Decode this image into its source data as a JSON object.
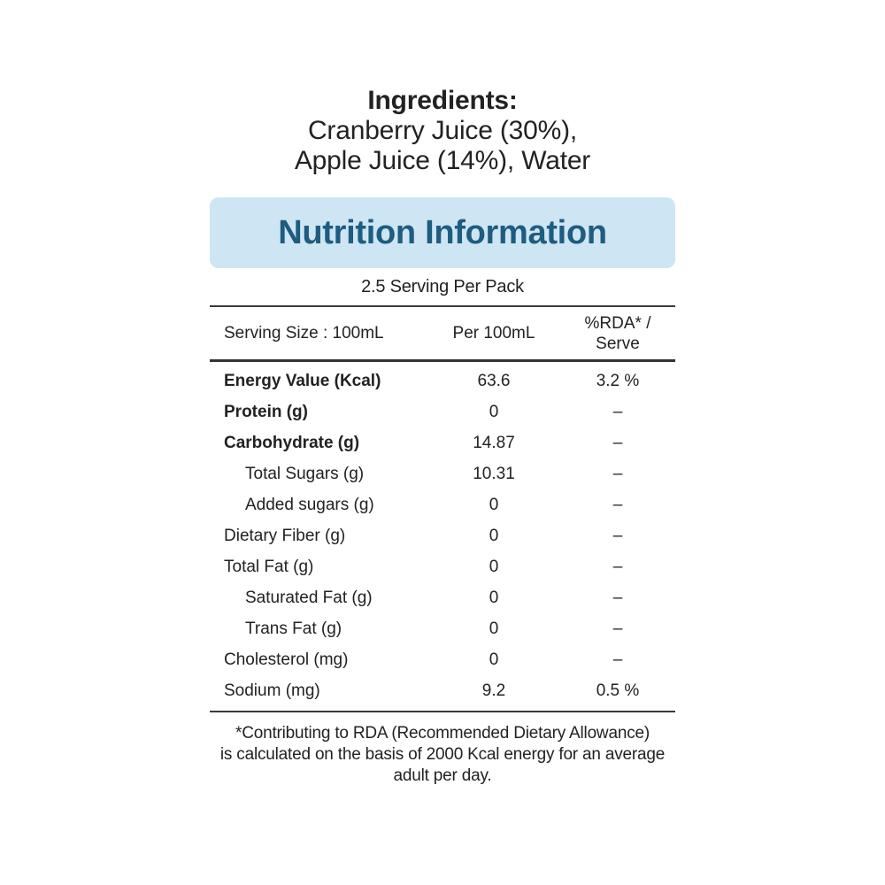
{
  "colors": {
    "banner_background": "#cee5f3",
    "banner_text": "#1e5c80",
    "body_text": "#242122",
    "rule": "#3a3a3a"
  },
  "ingredients": {
    "heading": "Ingredients:",
    "lines": [
      "Cranberry Juice (30%),",
      "Apple Juice (14%), Water"
    ]
  },
  "nutrition": {
    "title": "Nutrition Information",
    "servings_per_pack": "2.5 Serving Per Pack",
    "header": {
      "col1": "Serving Size : 100mL",
      "col2": "Per 100mL",
      "col3_line1": "%RDA* /",
      "col3_line2": "Serve"
    },
    "rows": [
      {
        "label": "Energy Value (Kcal)",
        "per_100ml": "63.6",
        "rda_per_serve": "3.2 %"
      },
      {
        "label": "Protein (g)",
        "per_100ml": "0",
        "rda_per_serve": "–"
      },
      {
        "label": "Carbohydrate (g)",
        "per_100ml": "14.87",
        "rda_per_serve": "–"
      },
      {
        "label": "Total Sugars (g)",
        "per_100ml": "10.31",
        "rda_per_serve": "–"
      },
      {
        "label": "Added sugars (g)",
        "per_100ml": "0",
        "rda_per_serve": "–"
      },
      {
        "label": "Dietary Fiber (g)",
        "per_100ml": "0",
        "rda_per_serve": "–"
      },
      {
        "label": "Total Fat (g)",
        "per_100ml": "0",
        "rda_per_serve": "–"
      },
      {
        "label": "Saturated Fat (g)",
        "per_100ml": "0",
        "rda_per_serve": "–"
      },
      {
        "label": "Trans Fat (g)",
        "per_100ml": "0",
        "rda_per_serve": "–"
      },
      {
        "label": "Cholesterol (mg)",
        "per_100ml": "0",
        "rda_per_serve": "–"
      },
      {
        "label": "Sodium (mg)",
        "per_100ml": "9.2",
        "rda_per_serve": "0.5 %"
      }
    ],
    "footnote": {
      "lines": [
        "*Contributing to RDA (Recommended Dietary Allowance)",
        "is calculated on the basis of 2000 Kcal energy for an average",
        "adult per day."
      ]
    }
  }
}
